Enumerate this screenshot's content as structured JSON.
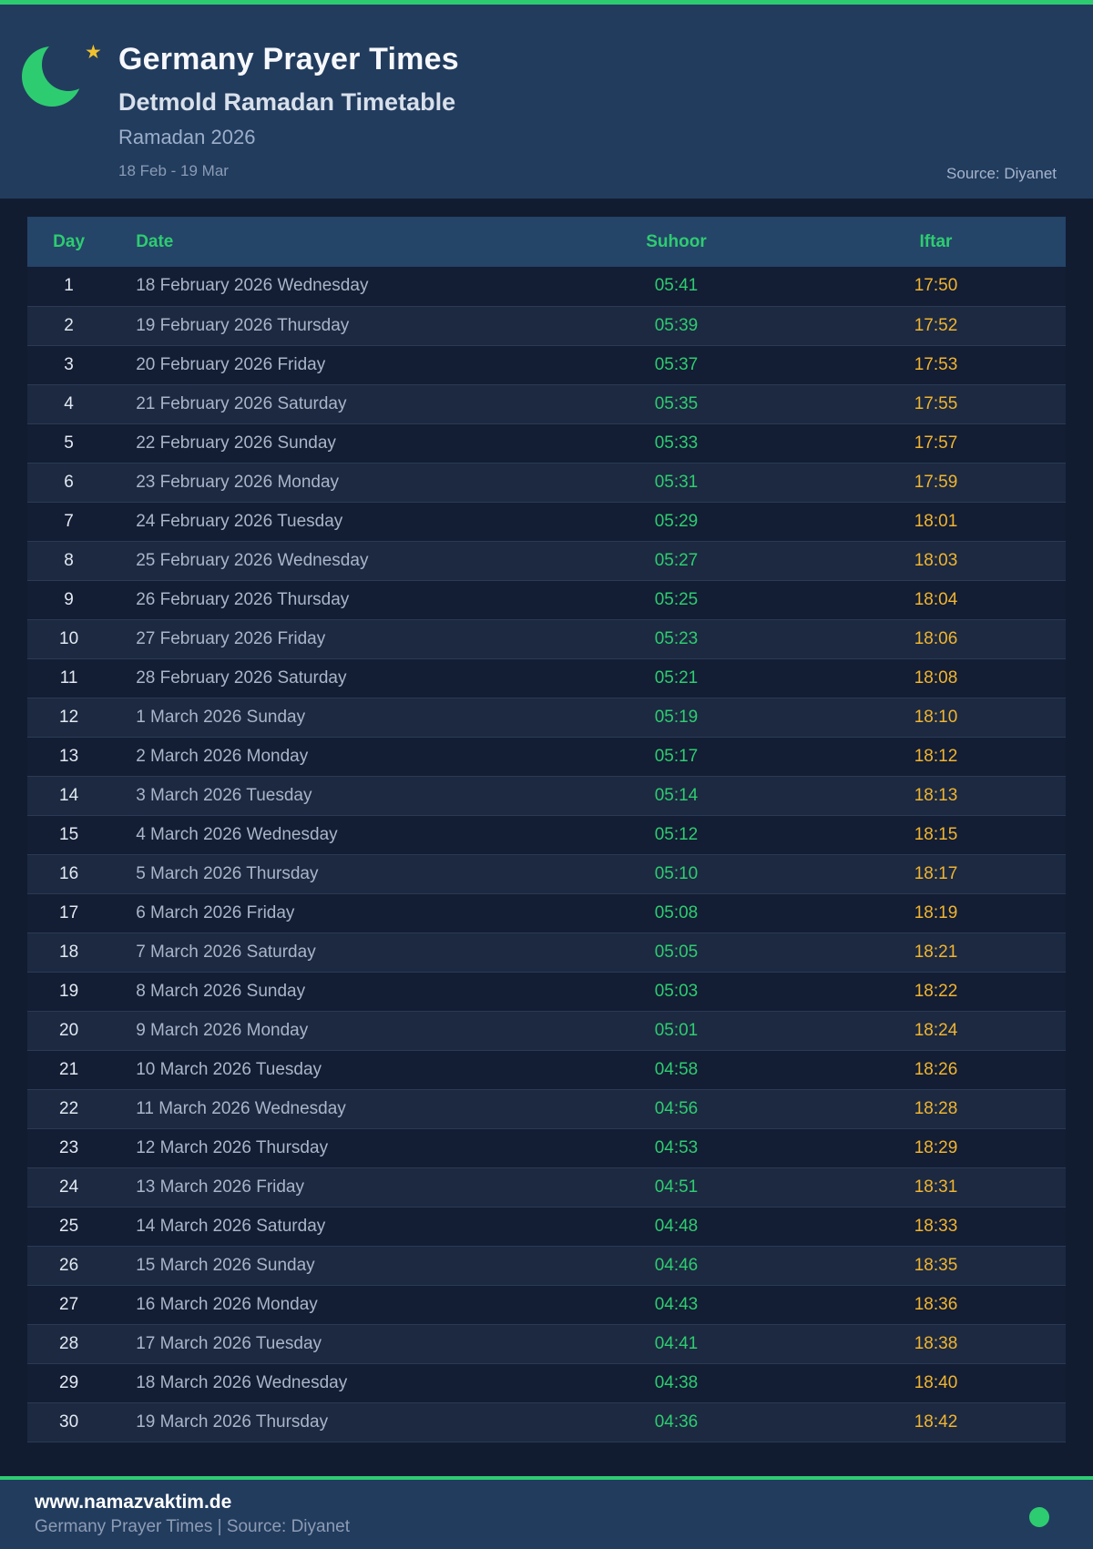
{
  "hero": {
    "title": "Germany Prayer Times",
    "subtitle": "Detmold Ramadan Timetable",
    "season": "Ramadan 2026",
    "date_range": "18 Feb - 19 Mar",
    "source": "Source: Diyanet"
  },
  "icons": {
    "logo_moon": "crescent-moon-icon",
    "logo_star": "star-icon",
    "star_glyph": "★"
  },
  "colors": {
    "accent_green": "#2ecc71",
    "iftar_amber": "#f0b431",
    "hero_bg": "#223c5e",
    "page_bg": "#121c31",
    "table_header_bg": "#244468"
  },
  "table": {
    "columns": [
      "Day",
      "Date",
      "Suhoor",
      "Iftar"
    ],
    "rows": [
      {
        "day": "1",
        "date": "18 February 2026 Wednesday",
        "suhoor": "05:41",
        "iftar": "17:50"
      },
      {
        "day": "2",
        "date": "19 February 2026 Thursday",
        "suhoor": "05:39",
        "iftar": "17:52"
      },
      {
        "day": "3",
        "date": "20 February 2026 Friday",
        "suhoor": "05:37",
        "iftar": "17:53"
      },
      {
        "day": "4",
        "date": "21 February 2026 Saturday",
        "suhoor": "05:35",
        "iftar": "17:55"
      },
      {
        "day": "5",
        "date": "22 February 2026 Sunday",
        "suhoor": "05:33",
        "iftar": "17:57"
      },
      {
        "day": "6",
        "date": "23 February 2026 Monday",
        "suhoor": "05:31",
        "iftar": "17:59"
      },
      {
        "day": "7",
        "date": "24 February 2026 Tuesday",
        "suhoor": "05:29",
        "iftar": "18:01"
      },
      {
        "day": "8",
        "date": "25 February 2026 Wednesday",
        "suhoor": "05:27",
        "iftar": "18:03"
      },
      {
        "day": "9",
        "date": "26 February 2026 Thursday",
        "suhoor": "05:25",
        "iftar": "18:04"
      },
      {
        "day": "10",
        "date": "27 February 2026 Friday",
        "suhoor": "05:23",
        "iftar": "18:06"
      },
      {
        "day": "11",
        "date": "28 February 2026 Saturday",
        "suhoor": "05:21",
        "iftar": "18:08"
      },
      {
        "day": "12",
        "date": "1 March 2026 Sunday",
        "suhoor": "05:19",
        "iftar": "18:10"
      },
      {
        "day": "13",
        "date": "2 March 2026 Monday",
        "suhoor": "05:17",
        "iftar": "18:12"
      },
      {
        "day": "14",
        "date": "3 March 2026 Tuesday",
        "suhoor": "05:14",
        "iftar": "18:13"
      },
      {
        "day": "15",
        "date": "4 March 2026 Wednesday",
        "suhoor": "05:12",
        "iftar": "18:15"
      },
      {
        "day": "16",
        "date": "5 March 2026 Thursday",
        "suhoor": "05:10",
        "iftar": "18:17"
      },
      {
        "day": "17",
        "date": "6 March 2026 Friday",
        "suhoor": "05:08",
        "iftar": "18:19"
      },
      {
        "day": "18",
        "date": "7 March 2026 Saturday",
        "suhoor": "05:05",
        "iftar": "18:21"
      },
      {
        "day": "19",
        "date": "8 March 2026 Sunday",
        "suhoor": "05:03",
        "iftar": "18:22"
      },
      {
        "day": "20",
        "date": "9 March 2026 Monday",
        "suhoor": "05:01",
        "iftar": "18:24"
      },
      {
        "day": "21",
        "date": "10 March 2026 Tuesday",
        "suhoor": "04:58",
        "iftar": "18:26"
      },
      {
        "day": "22",
        "date": "11 March 2026 Wednesday",
        "suhoor": "04:56",
        "iftar": "18:28"
      },
      {
        "day": "23",
        "date": "12 March 2026 Thursday",
        "suhoor": "04:53",
        "iftar": "18:29"
      },
      {
        "day": "24",
        "date": "13 March 2026 Friday",
        "suhoor": "04:51",
        "iftar": "18:31"
      },
      {
        "day": "25",
        "date": "14 March 2026 Saturday",
        "suhoor": "04:48",
        "iftar": "18:33"
      },
      {
        "day": "26",
        "date": "15 March 2026 Sunday",
        "suhoor": "04:46",
        "iftar": "18:35"
      },
      {
        "day": "27",
        "date": "16 March 2026 Monday",
        "suhoor": "04:43",
        "iftar": "18:36"
      },
      {
        "day": "28",
        "date": "17 March 2026 Tuesday",
        "suhoor": "04:41",
        "iftar": "18:38"
      },
      {
        "day": "29",
        "date": "18 March 2026 Wednesday",
        "suhoor": "04:38",
        "iftar": "18:40"
      },
      {
        "day": "30",
        "date": "19 March 2026 Thursday",
        "suhoor": "04:36",
        "iftar": "18:42"
      }
    ]
  },
  "footer": {
    "website": "www.namazvaktim.de",
    "tagline": "Germany Prayer Times | Source: Diyanet"
  }
}
